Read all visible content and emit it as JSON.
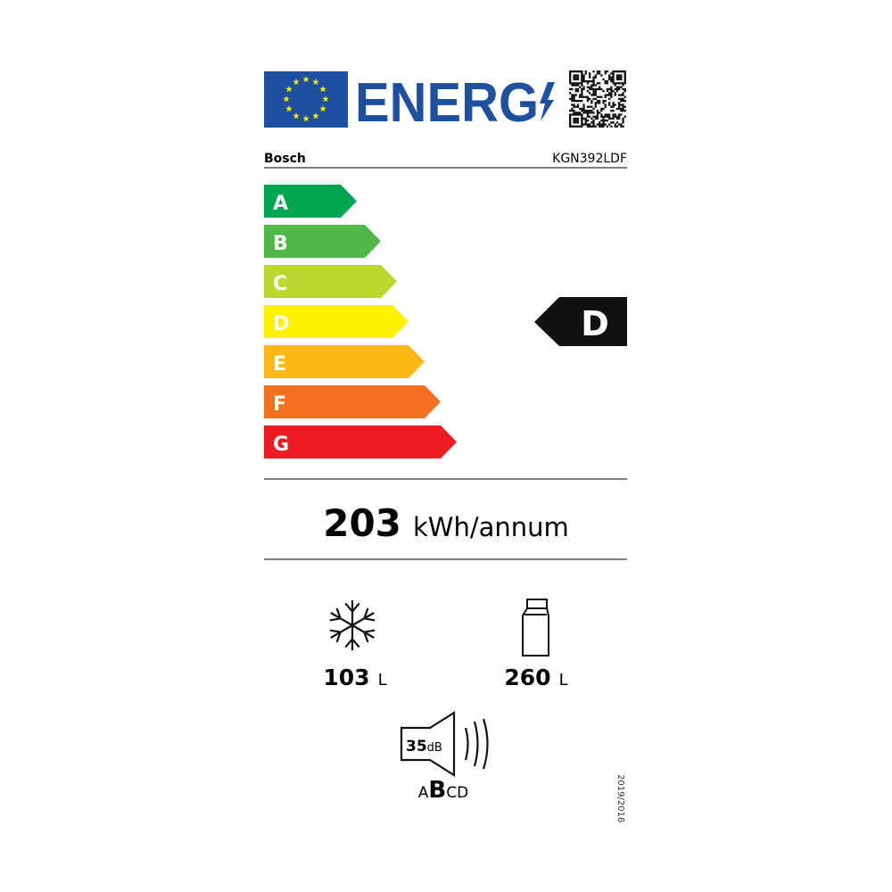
{
  "header": {
    "logo_text": "ENERG",
    "flag_color": "#1f4f9f",
    "star_color": "#ffed00"
  },
  "supplier": "Bosch",
  "model": "KGN392LDF",
  "scale": {
    "classes": [
      {
        "letter": "A",
        "color": "#00a651"
      },
      {
        "letter": "B",
        "color": "#50b848"
      },
      {
        "letter": "C",
        "color": "#bed630"
      },
      {
        "letter": "D",
        "color": "#fff200"
      },
      {
        "letter": "E",
        "color": "#fcb814"
      },
      {
        "letter": "F",
        "color": "#f37021"
      },
      {
        "letter": "G",
        "color": "#ed1c24"
      }
    ],
    "rating": "D"
  },
  "consumption": {
    "value": "203",
    "unit": "kWh/annum"
  },
  "freezer": {
    "icon": "snowflake-icon",
    "value": "103",
    "unit": "L"
  },
  "fridge": {
    "icon": "bottle-icon",
    "value": "260",
    "unit": "L"
  },
  "noise": {
    "icon": "speaker-icon",
    "value": "35",
    "unit": "dB",
    "classes": [
      "A",
      "B",
      "C",
      "D"
    ],
    "selected": "B"
  },
  "regulation": "2019/2016"
}
